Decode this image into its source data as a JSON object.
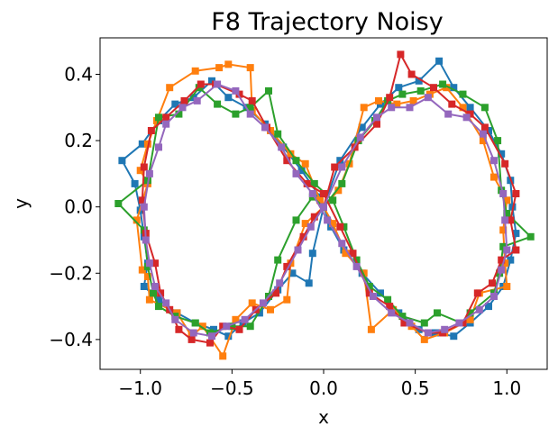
{
  "chart_data": {
    "type": "line",
    "title": "F8 Trajectory Noisy",
    "xlabel": "x",
    "ylabel": "y",
    "xlim": [
      -1.22,
      1.22
    ],
    "ylim": [
      -0.49,
      0.51
    ],
    "xticks": [
      -1.0,
      -0.5,
      0.0,
      0.5,
      1.0
    ],
    "xtick_labels": [
      "−1.0",
      "−0.5",
      "0.0",
      "0.5",
      "1.0"
    ],
    "yticks": [
      -0.4,
      -0.2,
      0.0,
      0.2,
      0.4
    ],
    "ytick_labels": [
      "−0.4",
      "−0.2",
      "0.0",
      "0.2",
      "0.4"
    ],
    "grid": false,
    "legend": "none",
    "marker": "square",
    "series": [
      {
        "color": "#1f77b4",
        "points": [
          [
            0.0,
            0.0
          ],
          [
            0.09,
            0.14
          ],
          [
            0.21,
            0.24
          ],
          [
            0.31,
            0.31
          ],
          [
            0.41,
            0.36
          ],
          [
            0.52,
            0.38
          ],
          [
            0.63,
            0.44
          ],
          [
            0.71,
            0.36
          ],
          [
            0.8,
            0.3
          ],
          [
            0.9,
            0.23
          ],
          [
            0.97,
            0.16
          ],
          [
            1.02,
            0.08
          ],
          [
            1.03,
            0.0
          ],
          [
            1.05,
            -0.08
          ],
          [
            1.02,
            -0.16
          ],
          [
            0.98,
            -0.24
          ],
          [
            0.9,
            -0.3
          ],
          [
            0.8,
            -0.35
          ],
          [
            0.71,
            -0.39
          ],
          [
            0.61,
            -0.38
          ],
          [
            0.52,
            -0.37
          ],
          [
            0.41,
            -0.32
          ],
          [
            0.31,
            -0.26
          ],
          [
            0.21,
            -0.2
          ],
          [
            0.11,
            -0.13
          ],
          [
            0.04,
            -0.06
          ],
          [
            -0.02,
            0.03
          ],
          [
            -0.12,
            0.11
          ],
          [
            -0.22,
            0.18
          ],
          [
            -0.32,
            0.25
          ],
          [
            -0.42,
            0.3
          ],
          [
            -0.52,
            0.33
          ],
          [
            -0.61,
            0.38
          ],
          [
            -0.71,
            0.33
          ],
          [
            -0.81,
            0.31
          ],
          [
            -0.9,
            0.26
          ],
          [
            -0.99,
            0.19
          ],
          [
            -1.1,
            0.14
          ],
          [
            -1.03,
            0.07
          ],
          [
            -1.0,
            -0.01
          ],
          [
            -0.98,
            -0.09
          ],
          [
            -0.96,
            -0.17
          ],
          [
            -0.98,
            -0.24
          ],
          [
            -0.9,
            -0.28
          ],
          [
            -0.8,
            -0.32
          ],
          [
            -0.7,
            -0.35
          ],
          [
            -0.6,
            -0.37
          ],
          [
            -0.52,
            -0.39
          ],
          [
            -0.44,
            -0.35
          ],
          [
            -0.35,
            -0.32
          ],
          [
            -0.25,
            -0.25
          ],
          [
            -0.17,
            -0.2
          ],
          [
            -0.08,
            -0.23
          ],
          [
            -0.06,
            -0.14
          ],
          [
            0.0,
            0.0
          ]
        ]
      },
      {
        "color": "#ff7f0e",
        "points": [
          [
            0.0,
            0.0
          ],
          [
            0.08,
            0.05
          ],
          [
            0.14,
            0.13
          ],
          [
            0.22,
            0.3
          ],
          [
            0.3,
            0.32
          ],
          [
            0.4,
            0.31
          ],
          [
            0.49,
            0.32
          ],
          [
            0.58,
            0.34
          ],
          [
            0.67,
            0.36
          ],
          [
            0.76,
            0.3
          ],
          [
            0.87,
            0.2
          ],
          [
            0.93,
            0.09
          ],
          [
            1.0,
            0.02
          ],
          [
            0.98,
            -0.07
          ],
          [
            0.99,
            -0.17
          ],
          [
            1.0,
            -0.24
          ],
          [
            0.85,
            -0.26
          ],
          [
            0.8,
            -0.34
          ],
          [
            0.66,
            -0.38
          ],
          [
            0.55,
            -0.4
          ],
          [
            0.48,
            -0.36
          ],
          [
            0.38,
            -0.31
          ],
          [
            0.26,
            -0.37
          ],
          [
            0.22,
            -0.2
          ],
          [
            0.12,
            -0.14
          ],
          [
            0.05,
            -0.05
          ],
          [
            -0.02,
            0.02
          ],
          [
            -0.1,
            0.13
          ],
          [
            -0.18,
            0.16
          ],
          [
            -0.29,
            0.23
          ],
          [
            -0.39,
            0.29
          ],
          [
            -0.4,
            0.42
          ],
          [
            -0.52,
            0.43
          ],
          [
            -0.57,
            0.42
          ],
          [
            -0.7,
            0.41
          ],
          [
            -0.84,
            0.36
          ],
          [
            -0.91,
            0.26
          ],
          [
            -0.96,
            0.19
          ],
          [
            -1.0,
            0.11
          ],
          [
            -0.96,
            0.07
          ],
          [
            -1.02,
            -0.04
          ],
          [
            -0.99,
            -0.19
          ],
          [
            -0.96,
            -0.21
          ],
          [
            -0.95,
            -0.28
          ],
          [
            -0.8,
            -0.32
          ],
          [
            -0.72,
            -0.39
          ],
          [
            -0.66,
            -0.36
          ],
          [
            -0.55,
            -0.45
          ],
          [
            -0.48,
            -0.34
          ],
          [
            -0.39,
            -0.29
          ],
          [
            -0.29,
            -0.31
          ],
          [
            -0.2,
            -0.28
          ],
          [
            -0.18,
            -0.17
          ],
          [
            -0.1,
            -0.05
          ],
          [
            0.0,
            0.0
          ]
        ]
      },
      {
        "color": "#2ca02c",
        "points": [
          [
            0.0,
            0.0
          ],
          [
            0.1,
            0.07
          ],
          [
            0.19,
            0.2
          ],
          [
            0.28,
            0.26
          ],
          [
            0.35,
            0.32
          ],
          [
            0.43,
            0.34
          ],
          [
            0.53,
            0.35
          ],
          [
            0.65,
            0.37
          ],
          [
            0.76,
            0.34
          ],
          [
            0.88,
            0.3
          ],
          [
            0.95,
            0.2
          ],
          [
            0.97,
            0.05
          ],
          [
            1.0,
            -0.02
          ],
          [
            1.13,
            -0.09
          ],
          [
            0.98,
            -0.12
          ],
          [
            0.96,
            -0.2
          ],
          [
            0.93,
            -0.26
          ],
          [
            0.8,
            -0.32
          ],
          [
            0.75,
            -0.35
          ],
          [
            0.62,
            -0.32
          ],
          [
            0.55,
            -0.35
          ],
          [
            0.43,
            -0.33
          ],
          [
            0.35,
            -0.28
          ],
          [
            0.25,
            -0.24
          ],
          [
            0.18,
            -0.16
          ],
          [
            0.11,
            -0.06
          ],
          [
            0.05,
            0.02
          ],
          [
            -0.05,
            0.07
          ],
          [
            -0.15,
            0.14
          ],
          [
            -0.25,
            0.22
          ],
          [
            -0.3,
            0.35
          ],
          [
            -0.4,
            0.3
          ],
          [
            -0.48,
            0.28
          ],
          [
            -0.58,
            0.31
          ],
          [
            -0.68,
            0.36
          ],
          [
            -0.79,
            0.28
          ],
          [
            -0.9,
            0.27
          ],
          [
            -0.96,
            0.08
          ],
          [
            -1.12,
            0.01
          ],
          [
            -0.98,
            -0.07
          ],
          [
            -0.96,
            -0.18
          ],
          [
            -0.93,
            -0.26
          ],
          [
            -0.9,
            -0.3
          ],
          [
            -0.81,
            -0.33
          ],
          [
            -0.7,
            -0.35
          ],
          [
            -0.62,
            -0.38
          ],
          [
            -0.5,
            -0.36
          ],
          [
            -0.4,
            -0.36
          ],
          [
            -0.3,
            -0.27
          ],
          [
            -0.25,
            -0.16
          ],
          [
            -0.15,
            -0.04
          ],
          [
            -0.06,
            0.03
          ],
          [
            0.0,
            0.0
          ]
        ]
      },
      {
        "color": "#d62728",
        "points": [
          [
            0.0,
            0.0
          ],
          [
            0.06,
            0.12
          ],
          [
            0.17,
            0.18
          ],
          [
            0.29,
            0.25
          ],
          [
            0.36,
            0.33
          ],
          [
            0.42,
            0.46
          ],
          [
            0.48,
            0.4
          ],
          [
            0.6,
            0.36
          ],
          [
            0.7,
            0.31
          ],
          [
            0.8,
            0.28
          ],
          [
            0.88,
            0.24
          ],
          [
            0.99,
            0.13
          ],
          [
            1.05,
            0.04
          ],
          [
            1.02,
            -0.04
          ],
          [
            1.05,
            -0.13
          ],
          [
            0.97,
            -0.16
          ],
          [
            0.92,
            -0.23
          ],
          [
            0.84,
            -0.26
          ],
          [
            0.76,
            -0.35
          ],
          [
            0.65,
            -0.38
          ],
          [
            0.57,
            -0.38
          ],
          [
            0.44,
            -0.35
          ],
          [
            0.36,
            -0.3
          ],
          [
            0.25,
            -0.26
          ],
          [
            0.16,
            -0.14
          ],
          [
            0.09,
            -0.06
          ],
          [
            0.0,
            0.04
          ],
          [
            -0.09,
            0.07
          ],
          [
            -0.2,
            0.14
          ],
          [
            -0.31,
            0.24
          ],
          [
            -0.39,
            0.32
          ],
          [
            -0.46,
            0.34
          ],
          [
            -0.59,
            0.37
          ],
          [
            -0.67,
            0.37
          ],
          [
            -0.76,
            0.32
          ],
          [
            -0.86,
            0.27
          ],
          [
            -0.94,
            0.23
          ],
          [
            -0.98,
            0.12
          ],
          [
            -0.99,
            0.02
          ],
          [
            -0.97,
            -0.08
          ],
          [
            -0.92,
            -0.17
          ],
          [
            -0.89,
            -0.26
          ],
          [
            -0.84,
            -0.31
          ],
          [
            -0.79,
            -0.37
          ],
          [
            -0.72,
            -0.4
          ],
          [
            -0.62,
            -0.41
          ],
          [
            -0.55,
            -0.36
          ],
          [
            -0.46,
            -0.37
          ],
          [
            -0.37,
            -0.31
          ],
          [
            -0.26,
            -0.26
          ],
          [
            -0.2,
            -0.18
          ],
          [
            -0.11,
            -0.09
          ],
          [
            -0.05,
            -0.03
          ],
          [
            0.0,
            0.0
          ]
        ]
      },
      {
        "color": "#9467bd",
        "points": [
          [
            0.0,
            0.0
          ],
          [
            0.1,
            0.12
          ],
          [
            0.2,
            0.21
          ],
          [
            0.29,
            0.27
          ],
          [
            0.37,
            0.3
          ],
          [
            0.47,
            0.3
          ],
          [
            0.57,
            0.33
          ],
          [
            0.68,
            0.28
          ],
          [
            0.78,
            0.27
          ],
          [
            0.87,
            0.22
          ],
          [
            0.93,
            0.14
          ],
          [
            0.98,
            0.04
          ],
          [
            0.99,
            -0.04
          ],
          [
            1.0,
            -0.13
          ],
          [
            0.97,
            -0.19
          ],
          [
            0.93,
            -0.27
          ],
          [
            0.85,
            -0.31
          ],
          [
            0.74,
            -0.35
          ],
          [
            0.66,
            -0.37
          ],
          [
            0.57,
            -0.38
          ],
          [
            0.47,
            -0.35
          ],
          [
            0.37,
            -0.32
          ],
          [
            0.27,
            -0.27
          ],
          [
            0.18,
            -0.18
          ],
          [
            0.1,
            -0.11
          ],
          [
            0.02,
            -0.04
          ],
          [
            -0.06,
            0.04
          ],
          [
            -0.15,
            0.1
          ],
          [
            -0.23,
            0.18
          ],
          [
            -0.32,
            0.24
          ],
          [
            -0.4,
            0.28
          ],
          [
            -0.48,
            0.35
          ],
          [
            -0.58,
            0.37
          ],
          [
            -0.69,
            0.32
          ],
          [
            -0.77,
            0.3
          ],
          [
            -0.86,
            0.25
          ],
          [
            -0.9,
            0.18
          ],
          [
            -0.95,
            0.1
          ],
          [
            -0.98,
            0.0
          ],
          [
            -0.97,
            -0.1
          ],
          [
            -0.95,
            -0.17
          ],
          [
            -0.92,
            -0.24
          ],
          [
            -0.86,
            -0.29
          ],
          [
            -0.81,
            -0.34
          ],
          [
            -0.71,
            -0.38
          ],
          [
            -0.61,
            -0.39
          ],
          [
            -0.53,
            -0.36
          ],
          [
            -0.43,
            -0.34
          ],
          [
            -0.33,
            -0.29
          ],
          [
            -0.24,
            -0.23
          ],
          [
            -0.14,
            -0.13
          ],
          [
            -0.07,
            -0.06
          ],
          [
            0.0,
            0.0
          ]
        ]
      }
    ]
  }
}
